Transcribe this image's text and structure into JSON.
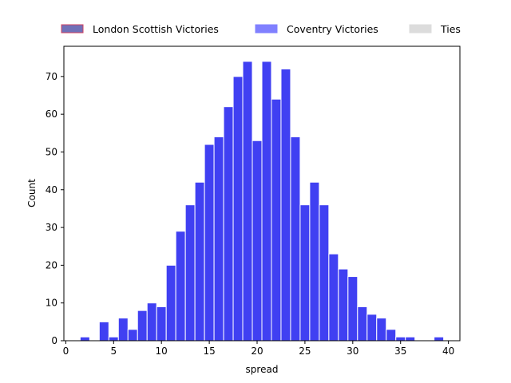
{
  "chart_data": {
    "type": "bar",
    "subtype": "histogram",
    "xlabel": "spread",
    "ylabel": "Count",
    "xlim": [
      -0.2,
      41.2
    ],
    "ylim": [
      0,
      78
    ],
    "xticks": [
      0,
      5,
      10,
      15,
      20,
      25,
      30,
      35,
      40
    ],
    "yticks": [
      0,
      10,
      20,
      30,
      40,
      50,
      60,
      70
    ],
    "bin_width": 1,
    "bar_color": "#4040f2",
    "bar_edge_color": "#ffffff",
    "grid": false,
    "legend": {
      "placement": "top",
      "entries": [
        {
          "label": "London Scottish Victories",
          "face": "#7070b8",
          "edge": "#d04060"
        },
        {
          "label": "Coventry Victories",
          "face": "#8080ff",
          "edge": "#8080ff"
        },
        {
          "label": "Ties",
          "face": "#dcdcdc",
          "edge": "#dcdcdc"
        }
      ]
    },
    "series": [
      {
        "bins": [
          {
            "x": 2,
            "value": 1
          },
          {
            "x": 4,
            "value": 5
          },
          {
            "x": 5,
            "value": 1
          },
          {
            "x": 6,
            "value": 6
          },
          {
            "x": 7,
            "value": 3
          },
          {
            "x": 8,
            "value": 8
          },
          {
            "x": 9,
            "value": 10
          },
          {
            "x": 10,
            "value": 9
          },
          {
            "x": 11,
            "value": 20
          },
          {
            "x": 12,
            "value": 29
          },
          {
            "x": 13,
            "value": 36
          },
          {
            "x": 14,
            "value": 42
          },
          {
            "x": 15,
            "value": 52
          },
          {
            "x": 16,
            "value": 54
          },
          {
            "x": 17,
            "value": 62
          },
          {
            "x": 18,
            "value": 70
          },
          {
            "x": 19,
            "value": 74
          },
          {
            "x": 20,
            "value": 53
          },
          {
            "x": 21,
            "value": 74
          },
          {
            "x": 22,
            "value": 64
          },
          {
            "x": 23,
            "value": 72
          },
          {
            "x": 24,
            "value": 54
          },
          {
            "x": 25,
            "value": 36
          },
          {
            "x": 26,
            "value": 42
          },
          {
            "x": 27,
            "value": 36
          },
          {
            "x": 28,
            "value": 23
          },
          {
            "x": 29,
            "value": 19
          },
          {
            "x": 30,
            "value": 17
          },
          {
            "x": 31,
            "value": 9
          },
          {
            "x": 32,
            "value": 7
          },
          {
            "x": 33,
            "value": 6
          },
          {
            "x": 34,
            "value": 3
          },
          {
            "x": 35,
            "value": 1
          },
          {
            "x": 36,
            "value": 1
          },
          {
            "x": 39,
            "value": 1
          }
        ]
      }
    ]
  }
}
